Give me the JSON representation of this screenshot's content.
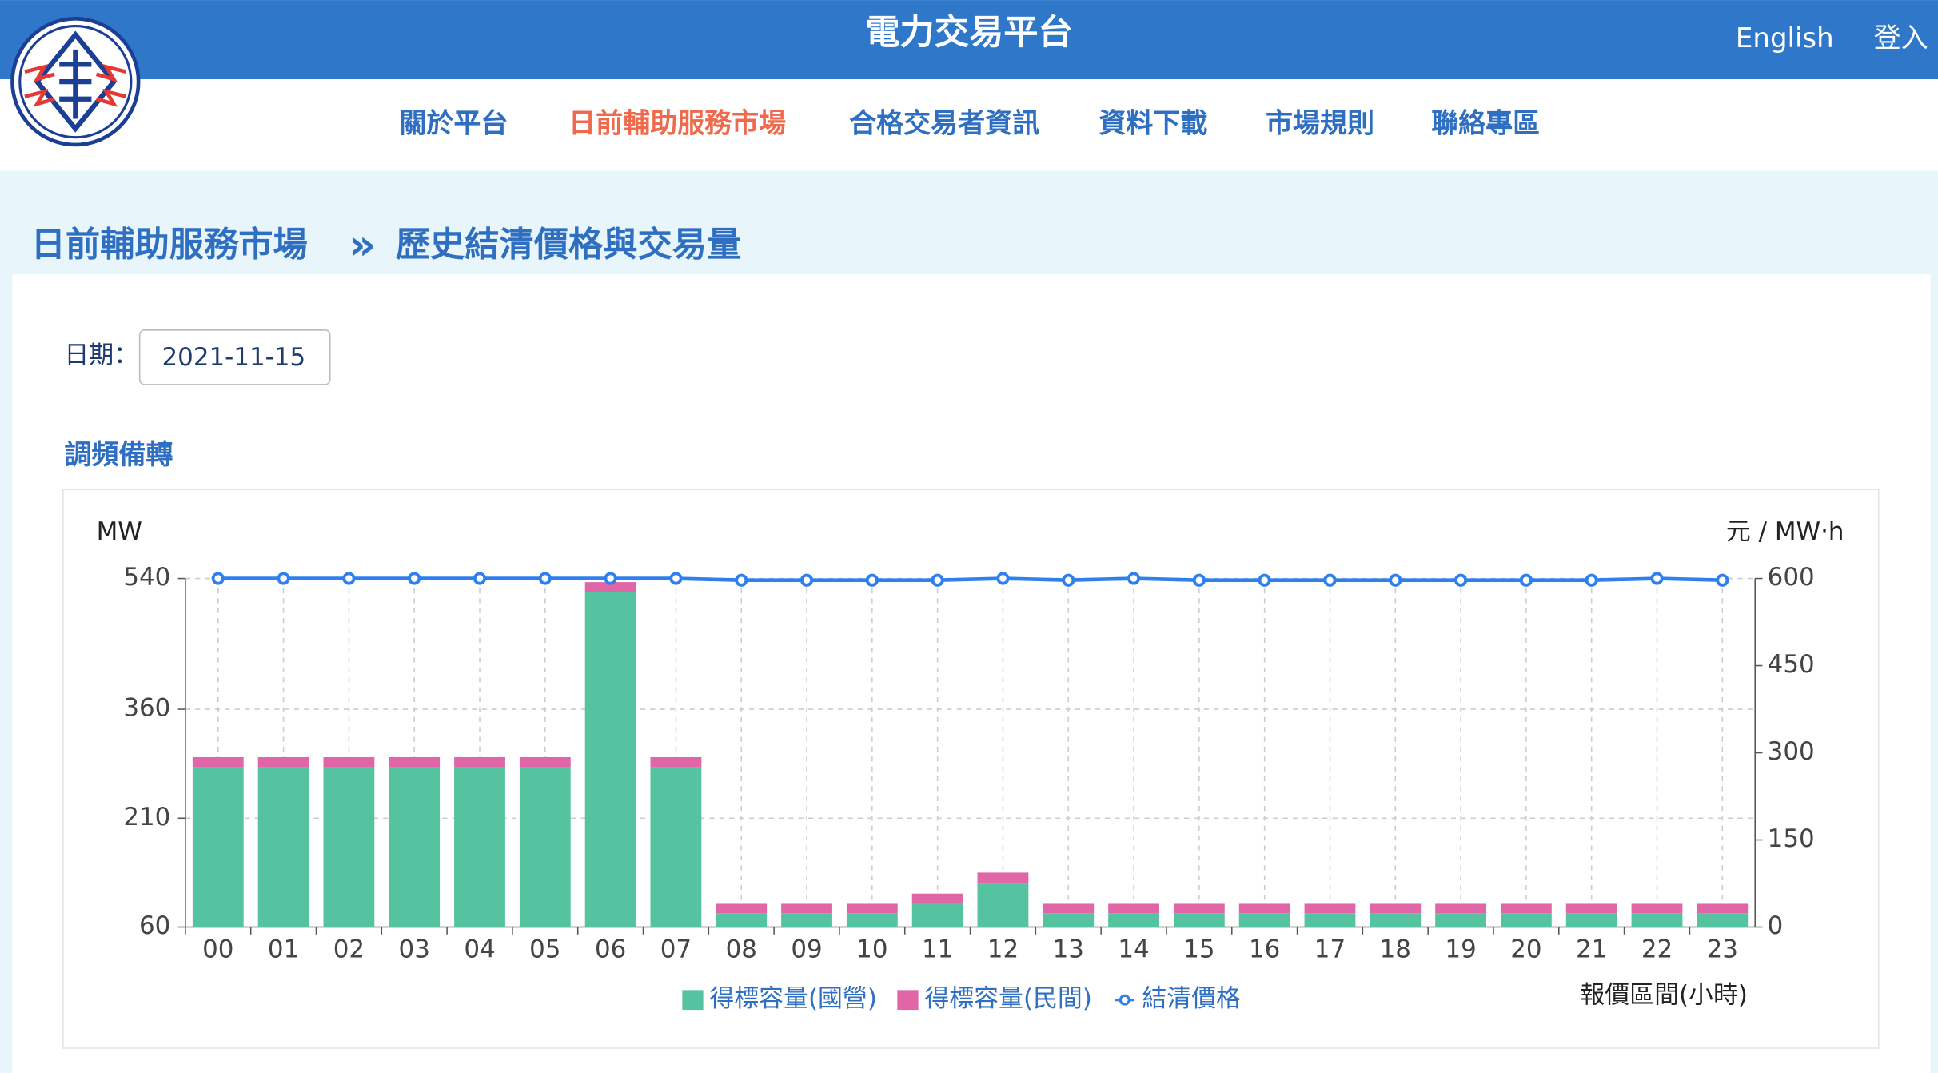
{
  "header": {
    "title": "電力交易平台",
    "links": [
      "English",
      "登入"
    ]
  },
  "nav": [
    "關於平台",
    "日前輔助服務市場",
    "合格交易者資訊",
    "資料下載",
    "市場規則",
    "聯絡專區"
  ],
  "breadcrumb": [
    "日前輔助服務市場",
    "»",
    "歷史結清價格與交易量"
  ],
  "date": {
    "label": "日期：",
    "value": "2021-11-15"
  },
  "section": "調頻備轉",
  "chart_data": {
    "type": "bar",
    "y_label": "MW",
    "y2_label": "元 / MW‧h",
    "x_label": "報價區間(小時)",
    "categories": [
      "00",
      "01",
      "02",
      "03",
      "04",
      "05",
      "06",
      "07",
      "08",
      "09",
      "10",
      "11",
      "12",
      "13",
      "14",
      "15",
      "16",
      "17",
      "18",
      "19",
      "20",
      "21",
      "22",
      "23"
    ],
    "series": [
      {
        "name": "得標容量(國營)",
        "color": "#55c3a0",
        "values": [
          280,
          280,
          280,
          280,
          280,
          280,
          521,
          280,
          79,
          79,
          79,
          92,
          121,
          79,
          79,
          79,
          79,
          79,
          79,
          79,
          79,
          79,
          79,
          79
        ]
      },
      {
        "name": "得標容量(民間)",
        "color": "#e066a8",
        "values": [
          14,
          14,
          14,
          14,
          14,
          14,
          14,
          14,
          13,
          13,
          13,
          14,
          14,
          13,
          13,
          13,
          13,
          13,
          13,
          13,
          13,
          13,
          13,
          13
        ]
      },
      {
        "name": "結清價格",
        "type": "line",
        "axis": "y2",
        "color": "#2f80ed",
        "values": [
          600,
          600,
          600,
          600,
          600,
          600,
          600,
          600,
          597,
          597,
          597,
          597,
          600,
          597,
          600,
          597,
          597,
          597,
          597,
          597,
          597,
          597,
          600,
          597
        ]
      }
    ],
    "ylim": [
      60,
      540
    ],
    "yticks": [
      60,
      210,
      360,
      540
    ],
    "y2lim": [
      0,
      600
    ],
    "y2ticks": [
      0,
      150,
      300,
      450,
      600
    ],
    "grid": true,
    "stacked": true
  }
}
